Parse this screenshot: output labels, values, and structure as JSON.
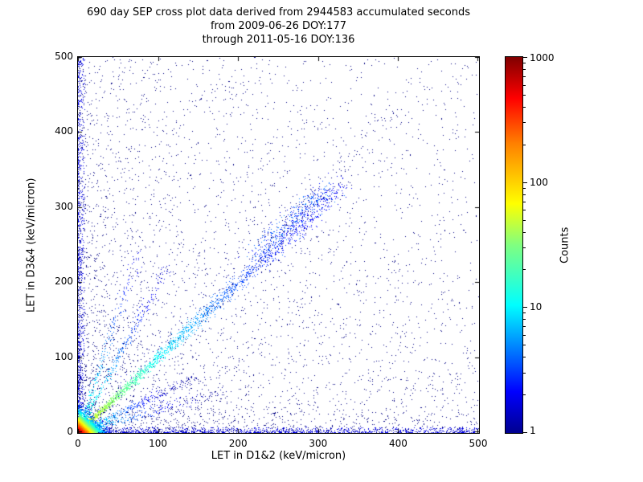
{
  "title_lines": [
    "690 day SEP cross plot data derived from 2944583 accumulated seconds",
    "from 2009-06-26 DOY:177",
    "through 2011-05-16 DOY:136"
  ],
  "chart_data": {
    "type": "scatter",
    "subtype": "2d-density-cross-plot",
    "title": "690 day SEP cross plot data derived from 2944583 accumulated seconds",
    "subtitle_lines": [
      "from 2009-06-26 DOY:177",
      "through 2011-05-16 DOY:136"
    ],
    "xlabel": "LET in D1&2 (keV/micron)",
    "ylabel": "LET in D3&4 (keV/micron)",
    "xlim": [
      0,
      500
    ],
    "ylim": [
      0,
      500
    ],
    "xticks": [
      0,
      100,
      200,
      300,
      400,
      500
    ],
    "yticks": [
      0,
      100,
      200,
      300,
      400,
      500
    ],
    "grid": false,
    "meta": {
      "span_days": 690,
      "accumulated_seconds": 2944583,
      "start_date": "2009-06-26",
      "start_doy": 177,
      "end_date": "2011-05-16",
      "end_doy": 136
    },
    "colorbar": {
      "label": "Counts",
      "scale": "log",
      "min": 1,
      "max": 1000,
      "ticks": [
        1,
        10,
        100,
        1000
      ],
      "colormap": "jet",
      "gradient_stops": [
        [
          "#00008f",
          0
        ],
        [
          "#0000ff",
          11
        ],
        [
          "#00ffff",
          34
        ],
        [
          "#80ff80",
          50
        ],
        [
          "#ffff00",
          61
        ],
        [
          "#ff8000",
          77
        ],
        [
          "#ff0000",
          89
        ],
        [
          "#800000",
          100
        ]
      ]
    },
    "summary": "Dense hot core (counts up to ~1000, red/yellow) at origin below ~15 keV/micron; cyan-to-blue diagonal band y=x extending to ~330 with a sparse clump near 225-310; faint rays from origin at slopes ~0.3, 0.5, 2 and 3; sparse single-count dark-blue points scattered over the full plane, concentrated near both axes.",
    "features": [
      {
        "name": "background-sparse",
        "type": "power2d",
        "n": 3800,
        "xmax": 500,
        "ymax": 500,
        "xpow": 2.0,
        "ypow": 2.0,
        "count": 1,
        "seed": 101
      },
      {
        "name": "background-uniform",
        "type": "power2d",
        "n": 900,
        "xmax": 500,
        "ymax": 500,
        "xpow": 1.2,
        "ypow": 1.2,
        "count": 1,
        "seed": 102
      },
      {
        "name": "left-axis-band",
        "type": "band_v",
        "n": 750,
        "width": 8,
        "count": 2,
        "seed": 103
      },
      {
        "name": "bottom-axis-band",
        "type": "band_h",
        "n": 950,
        "width": 7,
        "count": 2,
        "seed": 104
      },
      {
        "name": "main-diagonal",
        "type": "ray",
        "n": 2600,
        "slope": 1.0,
        "smax": 330,
        "spower": 2.3,
        "noise": 1.2,
        "noise_grow": 0.02,
        "count_near": 70,
        "count_decay": 55,
        "count_floor": 2,
        "seed": 105
      },
      {
        "name": "diagonal-faint-tail",
        "type": "ray",
        "n": 180,
        "slope": 1.08,
        "smax": 460,
        "spower": 1.0,
        "noise": 6,
        "noise_grow": 0.02,
        "count_near": 1,
        "count_decay": 100,
        "count_floor": 1,
        "seed": 106
      },
      {
        "name": "diagonal-clump",
        "type": "cluster",
        "n": 420,
        "s0": 225,
        "s1": 310,
        "slope": 1.05,
        "sigma": 9,
        "count_min": 1,
        "count_max": 6,
        "seed": 107
      },
      {
        "name": "ray-slope-0.3",
        "type": "ray",
        "n": 300,
        "slope": 0.3,
        "smax": 180,
        "spower": 2.0,
        "noise": 1.0,
        "noise_grow": 0.03,
        "count_near": 20,
        "count_decay": 40,
        "count_floor": 1,
        "seed": 108
      },
      {
        "name": "ray-slope-0.5",
        "type": "ray",
        "n": 420,
        "slope": 0.5,
        "smax": 150,
        "spower": 2.0,
        "noise": 1.0,
        "noise_grow": 0.03,
        "count_near": 25,
        "count_decay": 30,
        "count_floor": 1,
        "seed": 109
      },
      {
        "name": "ray-slope-2",
        "type": "ray",
        "n": 420,
        "slope": 2.0,
        "smax": 110,
        "spower": 2.0,
        "noise": 1.0,
        "noise_grow": 0.03,
        "count_near": 25,
        "count_decay": 30,
        "count_floor": 1,
        "seed": 110
      },
      {
        "name": "ray-slope-3",
        "type": "ray",
        "n": 300,
        "slope": 3.2,
        "smax": 75,
        "spower": 2.0,
        "noise": 1.0,
        "noise_grow": 0.04,
        "count_near": 20,
        "count_decay": 25,
        "count_floor": 1,
        "seed": 111
      },
      {
        "name": "core-hot",
        "type": "blob_exp",
        "n": 7000,
        "sx": 6,
        "sy": 6,
        "count_peak": 1000,
        "count_decay": 6.5,
        "seed": 112
      }
    ]
  }
}
